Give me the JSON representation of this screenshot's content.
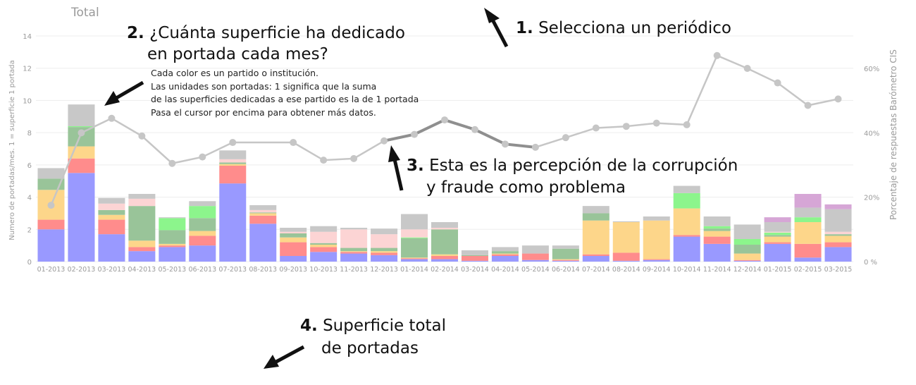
{
  "chart_data": {
    "type": "bar",
    "title": "Total",
    "ylabel": "Numero de portadas/mes. 1 = superficie 1 portada",
    "y2label": "Porcentaje de respuestas Barómetro CIS",
    "ylim": [
      0,
      14
    ],
    "yticks": [
      "0",
      "2",
      "4",
      "6",
      "8",
      "10",
      "12",
      "14"
    ],
    "y2lim": [
      0,
      60
    ],
    "y2ticks": [
      "0 %",
      "20%",
      "40%",
      "60%"
    ],
    "grid": true,
    "categories": [
      "01-2013",
      "02-2013",
      "03-2013",
      "04-2013",
      "05-2013",
      "06-2013",
      "07-2013",
      "08-2013",
      "09-2013",
      "10-2013",
      "11-2013",
      "12-2013",
      "01-2014",
      "02-2014",
      "03-2014",
      "04-2014",
      "05-2014",
      "06-2014",
      "07-2014",
      "08-2014",
      "09-2014",
      "10-2014",
      "11-2014",
      "12-2014",
      "01-2015",
      "02-2015",
      "03-2015"
    ],
    "series": [
      {
        "color": "#9999ff",
        "values": [
          2.0,
          5.5,
          1.7,
          0.65,
          0.9,
          1.0,
          4.85,
          2.35,
          0.35,
          0.6,
          0.5,
          0.4,
          0.15,
          0.15,
          0.05,
          0.35,
          0.1,
          0.05,
          0.35,
          0.05,
          0.1,
          1.55,
          1.1,
          0.05,
          1.1,
          0.25,
          0.9
        ]
      },
      {
        "color": "#ff8c8c",
        "values": [
          0.6,
          0.9,
          0.9,
          0.25,
          0.1,
          0.6,
          1.1,
          0.5,
          0.85,
          0.3,
          0.1,
          0.15,
          0.05,
          0.2,
          0.3,
          0.1,
          0.4,
          0.05,
          0.1,
          0.5,
          0.05,
          0.1,
          0.45,
          0.05,
          0.1,
          0.85,
          0.3
        ]
      },
      {
        "color": "#fdd68a",
        "values": [
          1.85,
          0.75,
          0.3,
          0.4,
          0.1,
          0.3,
          0.1,
          0.15,
          0.3,
          0.15,
          0.05,
          0.1,
          0.05,
          0.1,
          0.0,
          0.05,
          0.0,
          0.05,
          2.1,
          1.9,
          2.4,
          1.65,
          0.35,
          0.4,
          0.35,
          1.35,
          0.4
        ]
      },
      {
        "color": "#99c499",
        "values": [
          0.7,
          1.2,
          0.3,
          2.15,
          0.85,
          0.8,
          0.1,
          0.05,
          0.25,
          0.1,
          0.2,
          0.2,
          1.2,
          1.55,
          0.05,
          0.15,
          0.0,
          0.65,
          0.45,
          0.0,
          0.0,
          0.0,
          0.15,
          0.55,
          0.1,
          0.0,
          0.1
        ]
      },
      {
        "color": "#8cf58c",
        "values": [
          0.0,
          0.05,
          0.0,
          0.0,
          0.75,
          0.75,
          0.0,
          0.0,
          0.0,
          0.0,
          0.0,
          0.0,
          0.05,
          0.0,
          0.0,
          0.0,
          0.0,
          0.0,
          0.0,
          0.0,
          0.0,
          0.95,
          0.15,
          0.35,
          0.15,
          0.3,
          0.0
        ]
      },
      {
        "color": "#fcd4d4",
        "values": [
          0.0,
          0.0,
          0.4,
          0.45,
          0.0,
          0.0,
          0.2,
          0.15,
          0.1,
          0.7,
          1.15,
          0.85,
          0.5,
          0.1,
          0.0,
          0.0,
          0.0,
          0.0,
          0.0,
          0.0,
          0.0,
          0.0,
          0.0,
          0.0,
          0.05,
          0.0,
          0.15
        ]
      },
      {
        "color": "#c8c8c8",
        "values": [
          0.65,
          1.35,
          0.35,
          0.3,
          0.05,
          0.3,
          0.55,
          0.3,
          0.25,
          0.35,
          0.1,
          0.35,
          0.95,
          0.35,
          0.3,
          0.25,
          0.5,
          0.2,
          0.45,
          0.05,
          0.25,
          0.45,
          0.6,
          0.9,
          0.6,
          0.6,
          1.4
        ]
      },
      {
        "color": "#d6a6d6",
        "values": [
          0.0,
          0.0,
          0.0,
          0.0,
          0.0,
          0.0,
          0.0,
          0.0,
          0.0,
          0.0,
          0.0,
          0.0,
          0.0,
          0.0,
          0.0,
          0.0,
          0.0,
          0.0,
          0.0,
          0.0,
          0.0,
          0.0,
          0.0,
          0.0,
          0.3,
          0.85,
          0.3
        ]
      }
    ],
    "line": {
      "axis": "right",
      "values": [
        17.5,
        40,
        44.5,
        39,
        30.5,
        32.5,
        37,
        null,
        37,
        31.5,
        32,
        37.5,
        39.5,
        44,
        41,
        36.5,
        35.5,
        38.5,
        41.5,
        42,
        43,
        42.5,
        64,
        60,
        55.5,
        48.5,
        50.5
      ],
      "highlight_range": [
        11,
        16
      ]
    }
  },
  "annotations": {
    "a1": {
      "num": "1.",
      "text": "Selecciona un periódico"
    },
    "a2": {
      "num": "2.",
      "line1": "¿Cuánta superficie ha dedicado",
      "line2": "en portada cada mes?"
    },
    "a3": {
      "num": "3.",
      "line1": "Esta es la percepción de la corrupción",
      "line2": "y fraude como problema"
    },
    "a4": {
      "num": "4.",
      "line1": "Superficie total",
      "line2": "de portadas"
    }
  },
  "help_lines": [
    "Cada color es un partido o institución.",
    "Las unidades son portadas: 1 significa que la suma",
    "de las superficies dedicadas a ese partido es la de 1 portada",
    "Pasa el cursor por encima para obtener más datos."
  ]
}
